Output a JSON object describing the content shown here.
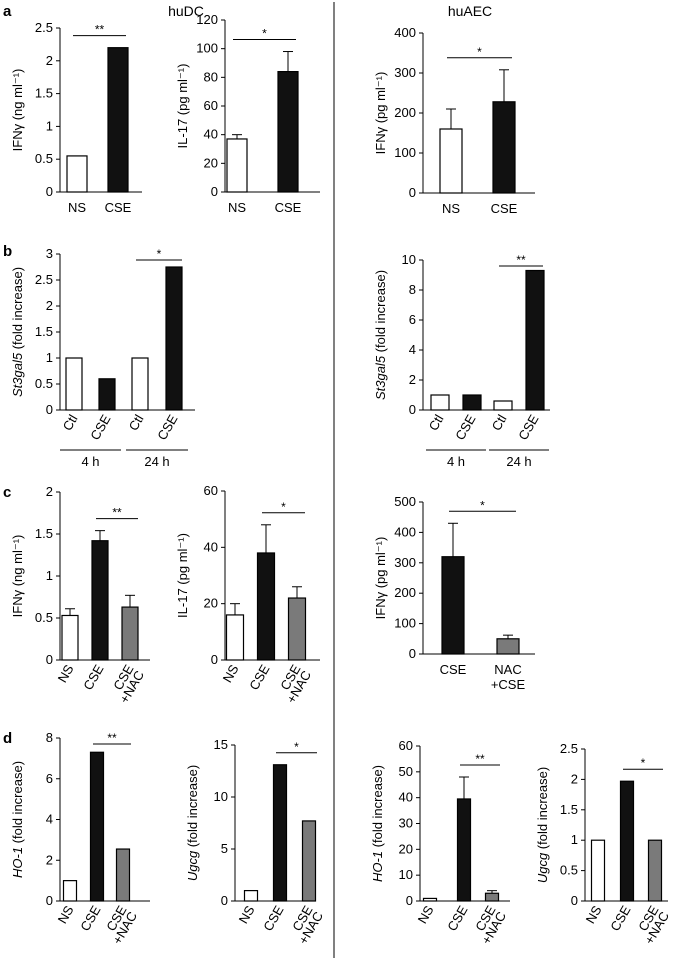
{
  "figure": {
    "colors": {
      "white_bar": "#ffffff",
      "black_bar": "#111111",
      "gray_bar": "#7a7a7a",
      "axis": "#000000"
    },
    "group_titles": [
      "huDC",
      "huAEC"
    ],
    "panel_letters": [
      "a",
      "b",
      "c",
      "d"
    ]
  },
  "chart_data": [
    {
      "id": "a1",
      "panel": "a",
      "group": "huDC",
      "type": "bar",
      "ylabel": "IFNγ (ng ml⁻¹)",
      "ylim": [
        0,
        2.5
      ],
      "yticks": [
        0,
        0.5,
        1,
        1.5,
        2,
        2.5
      ],
      "categories": [
        "NS",
        "CSE"
      ],
      "values": [
        0.55,
        2.2
      ],
      "errors": [
        0,
        0
      ],
      "colors": [
        "white",
        "black"
      ],
      "significance": [
        {
          "from": 0,
          "to": 1,
          "label": "**"
        }
      ]
    },
    {
      "id": "a2",
      "panel": "a",
      "group": "huDC",
      "type": "bar",
      "ylabel": "IL-17 (pg ml⁻¹)",
      "ylim": [
        0,
        120
      ],
      "yticks": [
        0,
        20,
        40,
        60,
        80,
        100,
        120
      ],
      "categories": [
        "NS",
        "CSE"
      ],
      "values": [
        37,
        84
      ],
      "errors": [
        3,
        14
      ],
      "colors": [
        "white",
        "black"
      ],
      "significance": [
        {
          "from": 0,
          "to": 1,
          "label": "*"
        }
      ]
    },
    {
      "id": "a3",
      "panel": "a",
      "group": "huAEC",
      "type": "bar",
      "ylabel": "IFNγ (pg ml⁻¹)",
      "ylim": [
        0,
        400
      ],
      "yticks": [
        0,
        100,
        200,
        300,
        400
      ],
      "categories": [
        "NS",
        "CSE"
      ],
      "values": [
        160,
        228
      ],
      "errors": [
        50,
        80
      ],
      "colors": [
        "white",
        "black"
      ],
      "significance": [
        {
          "from": 0,
          "to": 1,
          "label": "*"
        }
      ]
    },
    {
      "id": "b1",
      "panel": "b",
      "group": "huDC",
      "type": "bar",
      "ylabel": "St3gal5 (fold increase)",
      "ylabel_italic_prefix": "St3gal5",
      "ylabel_rest": " (fold increase)",
      "ylim": [
        0,
        3
      ],
      "yticks": [
        0,
        0.5,
        1,
        1.5,
        2,
        2.5,
        3
      ],
      "categories": [
        "Ctl",
        "CSE",
        "Ctl",
        "CSE"
      ],
      "values": [
        1,
        0.6,
        1,
        2.75
      ],
      "errors": [
        0,
        0,
        0,
        0
      ],
      "colors": [
        "white",
        "black",
        "white",
        "black"
      ],
      "time_groups": [
        {
          "label": "4 h",
          "from": 0,
          "to": 1
        },
        {
          "label": "24 h",
          "from": 2,
          "to": 3
        }
      ],
      "significance": [
        {
          "from": 2,
          "to": 3,
          "label": "*"
        }
      ]
    },
    {
      "id": "b2",
      "panel": "b",
      "group": "huAEC",
      "type": "bar",
      "ylabel": "St3gal5 (fold increase)",
      "ylabel_italic_prefix": "St3gal5",
      "ylabel_rest": " (fold increase)",
      "ylim": [
        0,
        10
      ],
      "yticks": [
        0,
        2,
        4,
        6,
        8,
        10
      ],
      "categories": [
        "Ctl",
        "CSE",
        "Ctl",
        "CSE"
      ],
      "values": [
        1,
        1,
        0.6,
        9.3
      ],
      "errors": [
        0,
        0,
        0,
        0
      ],
      "colors": [
        "white",
        "black",
        "white",
        "black"
      ],
      "time_groups": [
        {
          "label": "4 h",
          "from": 0,
          "to": 1
        },
        {
          "label": "24 h",
          "from": 2,
          "to": 3
        }
      ],
      "significance": [
        {
          "from": 2,
          "to": 3,
          "label": "**"
        }
      ]
    },
    {
      "id": "c1",
      "panel": "c",
      "group": "huDC",
      "type": "bar",
      "ylabel": "IFNγ (ng ml⁻¹)",
      "ylim": [
        0,
        2
      ],
      "yticks": [
        0,
        0.5,
        1,
        1.5,
        2
      ],
      "categories": [
        "NS",
        "CSE",
        "CSE\n+NAC"
      ],
      "values": [
        0.53,
        1.42,
        0.63
      ],
      "errors": [
        0.08,
        0.12,
        0.14
      ],
      "colors": [
        "white",
        "black",
        "gray"
      ],
      "significance": [
        {
          "from": 1,
          "to": 2,
          "label": "**"
        }
      ]
    },
    {
      "id": "c2",
      "panel": "c",
      "group": "huDC",
      "type": "bar",
      "ylabel": "IL-17 (pg ml⁻¹)",
      "ylim": [
        0,
        60
      ],
      "yticks": [
        0,
        20,
        40,
        60
      ],
      "categories": [
        "NS",
        "CSE",
        "CSE\n+NAC"
      ],
      "values": [
        16,
        38,
        22
      ],
      "errors": [
        4,
        10,
        4
      ],
      "colors": [
        "white",
        "black",
        "gray"
      ],
      "significance": [
        {
          "from": 1,
          "to": 2,
          "label": "*"
        }
      ]
    },
    {
      "id": "c3",
      "panel": "c",
      "group": "huAEC",
      "type": "bar",
      "ylabel": "IFNγ (pg ml⁻¹)",
      "ylim": [
        0,
        500
      ],
      "yticks": [
        0,
        100,
        200,
        300,
        400,
        500
      ],
      "categories": [
        "CSE",
        "NAC\n+CSE"
      ],
      "values": [
        320,
        50
      ],
      "errors": [
        110,
        12
      ],
      "colors": [
        "black",
        "gray"
      ],
      "significance": [
        {
          "from": 0,
          "to": 1,
          "label": "*"
        }
      ]
    },
    {
      "id": "d1",
      "panel": "d",
      "group": "huDC",
      "type": "bar",
      "ylabel": "HO-1 (fold increase)",
      "ylabel_italic_prefix": "HO-1",
      "ylabel_rest": " (fold increase)",
      "ylim": [
        0,
        8
      ],
      "yticks": [
        0,
        2,
        4,
        6,
        8
      ],
      "categories": [
        "NS",
        "CSE",
        "CSE\n+NAC"
      ],
      "values": [
        1,
        7.3,
        2.55
      ],
      "errors": [
        0,
        0,
        0
      ],
      "colors": [
        "white",
        "black",
        "gray"
      ],
      "significance": [
        {
          "from": 1,
          "to": 2,
          "label": "**"
        }
      ]
    },
    {
      "id": "d2",
      "panel": "d",
      "group": "huDC",
      "type": "bar",
      "ylabel": "Ugcg (fold increase)",
      "ylabel_italic_prefix": "Ugcg",
      "ylabel_rest": " (fold increase)",
      "ylim": [
        0,
        15
      ],
      "yticks": [
        0,
        5,
        10,
        15
      ],
      "categories": [
        "NS",
        "CSE",
        "CSE\n+NAC"
      ],
      "values": [
        1,
        13.1,
        7.7
      ],
      "errors": [
        0,
        0,
        0
      ],
      "colors": [
        "white",
        "black",
        "gray"
      ],
      "significance": [
        {
          "from": 1,
          "to": 2,
          "label": "*"
        }
      ]
    },
    {
      "id": "d3",
      "panel": "d",
      "group": "huAEC",
      "type": "bar",
      "ylabel": "HO-1 (fold increase)",
      "ylabel_italic_prefix": "HO-1",
      "ylabel_rest": " (fold increase)",
      "ylim": [
        0,
        60
      ],
      "yticks": [
        0,
        10,
        20,
        30,
        40,
        50,
        60
      ],
      "categories": [
        "NS",
        "CSE",
        "CSE\n+NAC"
      ],
      "values": [
        1,
        39.5,
        3
      ],
      "errors": [
        0,
        8.5,
        1
      ],
      "colors": [
        "white",
        "black",
        "gray"
      ],
      "significance": [
        {
          "from": 1,
          "to": 2,
          "label": "**"
        }
      ]
    },
    {
      "id": "d4",
      "panel": "d",
      "group": "huAEC",
      "type": "bar",
      "ylabel": "Ugcg (fold increase)",
      "ylabel_italic_prefix": "Ugcg",
      "ylabel_rest": " (fold increase)",
      "ylim": [
        0,
        2.5
      ],
      "yticks": [
        0,
        0.5,
        1,
        1.5,
        2,
        2.5
      ],
      "categories": [
        "NS",
        "CSE",
        "CSE\n+NAC"
      ],
      "values": [
        1,
        1.97,
        1.0
      ],
      "errors": [
        0,
        0,
        0
      ],
      "colors": [
        "white",
        "black",
        "gray"
      ],
      "significance": [
        {
          "from": 1,
          "to": 2,
          "label": "*"
        }
      ]
    }
  ]
}
